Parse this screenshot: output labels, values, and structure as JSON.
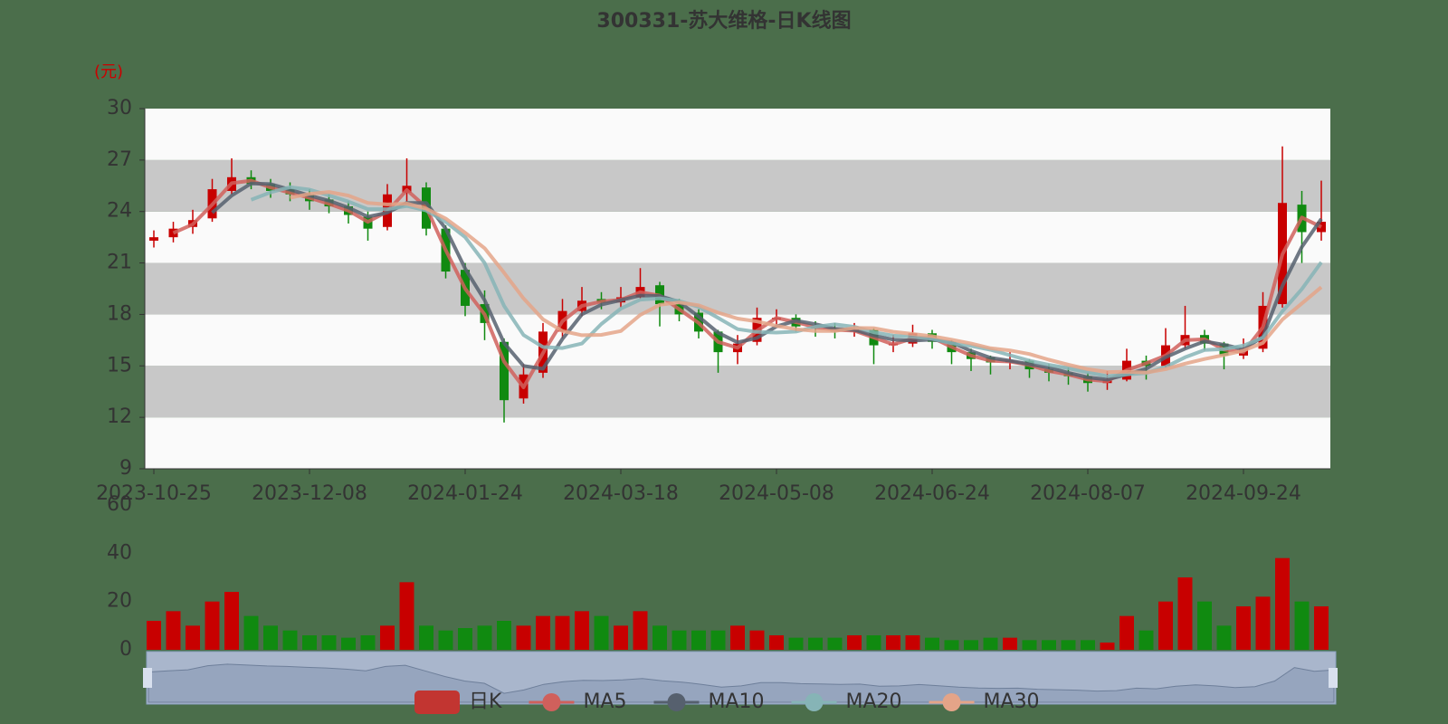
{
  "chart_data": {
    "type": "candlestick",
    "title": "300331-苏大维格-日K线图",
    "y_unit": "(元)",
    "categories": [
      "2023-10-25",
      null,
      null,
      null,
      null,
      null,
      null,
      null,
      "2023-12-08",
      null,
      null,
      null,
      null,
      null,
      null,
      null,
      "2024-01-24",
      null,
      null,
      null,
      null,
      null,
      null,
      null,
      "2024-03-18",
      null,
      null,
      null,
      null,
      null,
      null,
      null,
      "2024-05-08",
      null,
      null,
      null,
      null,
      null,
      null,
      null,
      "2024-06-24",
      null,
      null,
      null,
      null,
      null,
      null,
      null,
      "2024-08-07",
      null,
      null,
      null,
      null,
      null,
      null,
      null,
      "2024-09-24",
      null,
      null,
      null,
      null
    ],
    "series": [
      {
        "name": "日K",
        "type": "candlestick",
        "color": "#c23531",
        "color_up": "#c80000",
        "color_down": "#108a10",
        "values": [
          [
            22.3,
            22.5,
            21.9,
            22.9
          ],
          [
            22.5,
            23.0,
            22.2,
            23.4
          ],
          [
            23.1,
            23.5,
            22.7,
            24.1
          ],
          [
            23.6,
            25.3,
            23.4,
            25.9
          ],
          [
            25.2,
            26.0,
            25.0,
            27.1
          ],
          [
            26.0,
            25.6,
            25.3,
            26.4
          ],
          [
            25.6,
            25.2,
            24.8,
            25.9
          ],
          [
            25.3,
            25.0,
            24.6,
            25.7
          ],
          [
            25.0,
            24.6,
            24.1,
            25.3
          ],
          [
            24.7,
            24.3,
            23.9,
            25.0
          ],
          [
            24.3,
            23.8,
            23.3,
            24.6
          ],
          [
            23.7,
            23.0,
            22.3,
            24.0
          ],
          [
            23.1,
            25.0,
            22.9,
            25.6
          ],
          [
            25.1,
            25.5,
            24.6,
            27.1
          ],
          [
            25.4,
            23.0,
            22.6,
            25.7
          ],
          [
            23.0,
            20.5,
            20.1,
            23.2
          ],
          [
            20.6,
            18.5,
            17.9,
            21.0
          ],
          [
            18.6,
            17.5,
            16.5,
            19.4
          ],
          [
            16.4,
            13.0,
            11.7,
            16.6
          ],
          [
            13.1,
            14.5,
            12.8,
            15.1
          ],
          [
            14.6,
            17.0,
            14.3,
            17.5
          ],
          [
            17.0,
            18.2,
            16.6,
            18.9
          ],
          [
            18.2,
            18.8,
            17.9,
            19.6
          ],
          [
            18.9,
            18.7,
            18.3,
            19.3
          ],
          [
            18.7,
            19.0,
            18.4,
            19.6
          ],
          [
            19.0,
            19.6,
            18.9,
            20.7
          ],
          [
            19.7,
            18.6,
            17.3,
            19.9
          ],
          [
            18.6,
            18.0,
            17.6,
            18.9
          ],
          [
            18.1,
            17.0,
            16.6,
            18.3
          ],
          [
            17.0,
            15.8,
            14.6,
            17.1
          ],
          [
            15.8,
            16.3,
            15.1,
            16.8
          ],
          [
            16.4,
            17.8,
            16.2,
            18.4
          ],
          [
            17.7,
            17.8,
            17.4,
            18.3
          ],
          [
            17.8,
            17.3,
            17.0,
            18.0
          ],
          [
            17.3,
            17.2,
            16.7,
            17.6
          ],
          [
            17.2,
            17.0,
            16.6,
            17.5
          ],
          [
            17.0,
            17.1,
            16.7,
            17.5
          ],
          [
            17.1,
            16.2,
            15.1,
            17.2
          ],
          [
            16.2,
            16.3,
            15.8,
            16.8
          ],
          [
            16.3,
            16.9,
            16.1,
            17.4
          ],
          [
            16.9,
            16.4,
            16.0,
            17.1
          ],
          [
            16.4,
            15.8,
            15.1,
            16.5
          ],
          [
            15.8,
            15.4,
            14.7,
            16.0
          ],
          [
            15.5,
            15.2,
            14.5,
            15.6
          ],
          [
            15.2,
            15.3,
            14.8,
            15.8
          ],
          [
            15.3,
            14.8,
            14.3,
            15.4
          ],
          [
            14.8,
            14.6,
            14.1,
            15.1
          ],
          [
            14.6,
            14.4,
            13.9,
            14.9
          ],
          [
            14.4,
            14.0,
            13.5,
            14.6
          ],
          [
            14.0,
            14.2,
            13.6,
            14.7
          ],
          [
            14.2,
            15.3,
            14.1,
            16.0
          ],
          [
            15.3,
            15.0,
            14.2,
            15.6
          ],
          [
            15.0,
            16.2,
            14.9,
            17.2
          ],
          [
            16.2,
            16.8,
            16.0,
            18.5
          ],
          [
            16.8,
            16.3,
            15.9,
            17.1
          ],
          [
            16.3,
            15.6,
            14.8,
            16.4
          ],
          [
            15.6,
            16.0,
            15.4,
            16.6
          ],
          [
            16.0,
            18.5,
            15.8,
            19.3
          ],
          [
            18.6,
            24.5,
            18.4,
            27.8
          ],
          [
            24.4,
            22.8,
            21.0,
            25.2
          ],
          [
            22.8,
            23.4,
            22.3,
            25.8
          ]
        ]
      },
      {
        "name": "MA5",
        "type": "line",
        "color": "#d0605c",
        "values": [
          null,
          22.75,
          23.25,
          24.4,
          25.65,
          25.8,
          25.4,
          25.1,
          24.8,
          24.45,
          24.05,
          23.4,
          24.0,
          25.25,
          24.25,
          21.75,
          19.5,
          18.0,
          15.25,
          13.75,
          15.75,
          17.6,
          18.5,
          18.75,
          18.85,
          19.3,
          19.1,
          18.3,
          17.5,
          16.4,
          16.05,
          17.05,
          17.8,
          17.55,
          17.25,
          17.1,
          17.05,
          16.65,
          16.25,
          16.6,
          16.65,
          16.1,
          15.6,
          15.3,
          15.25,
          15.05,
          14.7,
          14.5,
          14.2,
          14.1,
          14.75,
          15.15,
          15.6,
          16.5,
          16.55,
          15.95,
          15.8,
          17.25,
          21.5,
          23.65,
          23.1
        ]
      },
      {
        "name": "MA10",
        "type": "line",
        "color": "#56606e",
        "values": [
          null,
          null,
          null,
          23.93,
          24.93,
          25.63,
          25.6,
          25.27,
          24.93,
          24.63,
          24.23,
          23.7,
          23.93,
          24.5,
          24.5,
          23.0,
          20.67,
          18.83,
          16.33,
          15.0,
          14.83,
          16.57,
          18.0,
          18.57,
          18.83,
          19.1,
          19.07,
          18.73,
          17.87,
          16.93,
          16.37,
          16.63,
          17.3,
          17.63,
          17.43,
          17.17,
          17.1,
          16.77,
          16.53,
          16.47,
          16.53,
          16.37,
          15.87,
          15.47,
          15.3,
          15.1,
          14.9,
          14.6,
          14.33,
          14.2,
          14.5,
          14.83,
          15.5,
          16.0,
          16.43,
          16.23,
          15.97,
          16.7,
          19.67,
          21.93,
          23.57
        ]
      },
      {
        "name": "MA20",
        "type": "line",
        "color": "#86b4b6",
        "values": [
          null,
          null,
          null,
          null,
          null,
          24.68,
          25.12,
          25.42,
          25.28,
          24.94,
          24.58,
          24.14,
          24.14,
          24.32,
          24.06,
          23.4,
          22.5,
          21.0,
          18.5,
          16.8,
          16.1,
          16.04,
          16.3,
          17.44,
          18.34,
          18.86,
          18.94,
          18.78,
          18.44,
          17.8,
          17.14,
          16.98,
          16.94,
          17.0,
          17.28,
          17.42,
          17.28,
          16.96,
          16.76,
          16.7,
          16.58,
          16.32,
          16.16,
          15.94,
          15.62,
          15.3,
          15.06,
          14.86,
          14.62,
          14.4,
          14.5,
          14.58,
          14.94,
          15.5,
          15.92,
          15.98,
          16.18,
          16.64,
          18.18,
          19.48,
          21.04
        ]
      },
      {
        "name": "MA30",
        "type": "line",
        "color": "#e4a488",
        "values": [
          null,
          null,
          null,
          null,
          null,
          null,
          null,
          24.8,
          25.03,
          25.14,
          24.93,
          24.5,
          24.41,
          24.46,
          24.17,
          23.59,
          22.76,
          21.86,
          20.43,
          18.93,
          17.71,
          17.03,
          16.79,
          16.81,
          17.03,
          17.97,
          18.56,
          18.7,
          18.53,
          18.1,
          17.76,
          17.59,
          17.33,
          17.14,
          17.03,
          17.03,
          17.21,
          17.2,
          16.99,
          16.86,
          16.73,
          16.53,
          16.3,
          16.03,
          15.9,
          15.69,
          15.36,
          15.07,
          14.81,
          14.64,
          14.66,
          14.61,
          14.81,
          15.13,
          15.4,
          15.63,
          15.89,
          16.34,
          17.7,
          18.64,
          19.59
        ]
      }
    ],
    "ylim": [
      9,
      30
    ],
    "yticks": [
      9,
      12,
      15,
      18,
      21,
      24,
      27,
      30
    ],
    "grid": true,
    "legend": "bottom",
    "volume": {
      "type": "bar",
      "values": [
        12,
        16,
        10,
        20,
        24,
        14,
        10,
        8,
        6,
        6,
        5,
        6,
        10,
        28,
        10,
        8,
        9,
        10,
        12,
        10,
        14,
        14,
        16,
        14,
        10,
        16,
        10,
        8,
        8,
        8,
        10,
        8,
        6,
        5,
        5,
        5,
        6,
        6,
        6,
        6,
        5,
        4,
        4,
        5,
        5,
        4,
        4,
        4,
        4,
        3,
        14,
        8,
        20,
        30,
        20,
        10,
        18,
        22,
        38,
        20,
        18
      ],
      "ylim": [
        0,
        60
      ],
      "yticks": [
        0,
        20,
        40,
        60
      ]
    }
  }
}
